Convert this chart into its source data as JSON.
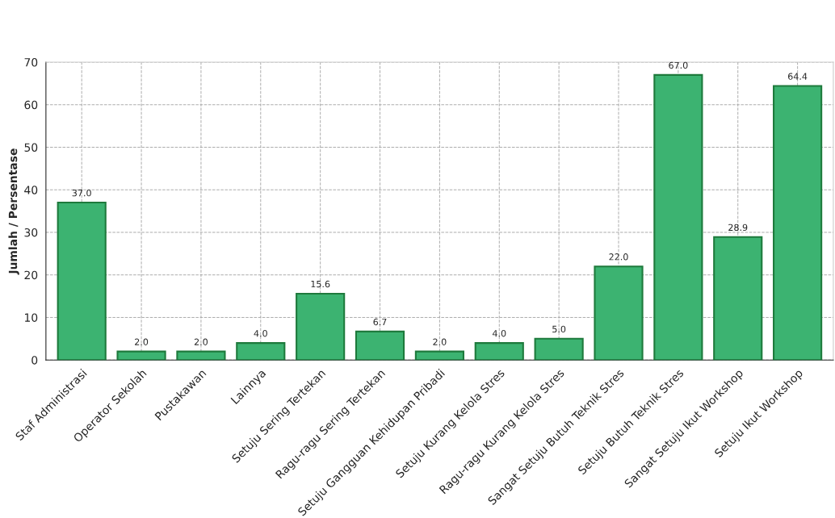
{
  "chart_data": {
    "type": "bar",
    "ylabel": "Jumlah / Persentase",
    "categories": [
      "Staf Administrasi",
      "Operator Sekolah",
      "Pustakawan",
      "Lainnya",
      "Setuju Sering Tertekan",
      "Ragu-ragu Sering Tertekan",
      "Setuju Gangguan Kehidupan Pribadi",
      "Setuju Kurang Kelola Stres",
      "Ragu-ragu Kurang Kelola Stres",
      "Sangat Setuju Butuh Teknik Stres",
      "Setuju Butuh Teknik Stres",
      "Sangat Setuju Ikut Workshop",
      "Setuju Ikut Workshop"
    ],
    "values": [
      37.0,
      2.0,
      2.0,
      4.0,
      15.6,
      6.7,
      2.0,
      4.0,
      5.0,
      22.0,
      67.0,
      28.9,
      64.4
    ],
    "value_labels": [
      "37.0",
      "2.0",
      "2.0",
      "4.0",
      "15.6",
      "6.7",
      "2.0",
      "4.0",
      "5.0",
      "22.0",
      "67.0",
      "28.9",
      "64.4"
    ],
    "color": "#3cb371",
    "ylim": [
      0,
      70
    ],
    "yticks": [
      0,
      10,
      20,
      30,
      40,
      50,
      60,
      70
    ],
    "grid": true
  }
}
